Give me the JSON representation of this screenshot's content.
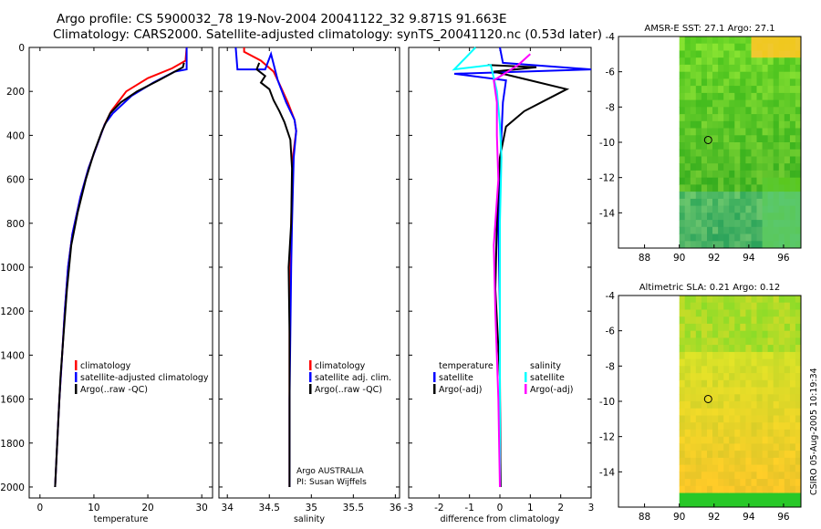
{
  "title": {
    "line1": "Argo profile: CS 5900032_78 19-Nov-2004 20041122_32 9.871S 91.663E",
    "line2": "Climatology: CARS2000. Satellite-adjusted climatology: synTS_20041120.nc (0.53d later)"
  },
  "side_label": "CSIRO 05-Aug-2005 10:19:34",
  "colors": {
    "climatology": "#ff0000",
    "satellite_adjusted": "#0000ff",
    "argo": "#000000",
    "salinity_satellite": "#00ffff",
    "salinity_argo_adj": "#ff00ff"
  },
  "chart_data": [
    {
      "type": "line",
      "id": "temperature",
      "xlabel": "temperature",
      "ylabel": "",
      "xlim": [
        -2,
        32
      ],
      "ylim": [
        2050,
        0
      ],
      "xticks": [
        0,
        10,
        20,
        30
      ],
      "yticks": [
        0,
        200,
        400,
        600,
        800,
        1000,
        1200,
        1400,
        1600,
        1800,
        2000
      ],
      "legend": [
        "climatology",
        "satellite-adjusted climatology",
        "Argo(..raw -QC)"
      ],
      "legend_placement": "lower-right",
      "series": [
        {
          "name": "climatology",
          "color": "#ff0000",
          "x": [
            27.2,
            27.0,
            24.5,
            20,
            16,
            13.2,
            12,
            10.5,
            9,
            7.5,
            6,
            5.2,
            4.6,
            4.1,
            3.6,
            3.2,
            2.8
          ],
          "y": [
            0,
            60,
            95,
            140,
            200,
            290,
            350,
            450,
            550,
            680,
            850,
            1000,
            1200,
            1400,
            1600,
            1800,
            2000
          ]
        },
        {
          "name": "satellite-adjusted climatology",
          "color": "#0000ff",
          "x": [
            27.2,
            27.2,
            25,
            21,
            17,
            13.5,
            12,
            10.5,
            9,
            7.5,
            6,
            5.2,
            4.6,
            4.1,
            3.6,
            3.2,
            2.8
          ],
          "y": [
            0,
            100,
            110,
            160,
            220,
            300,
            350,
            450,
            550,
            680,
            850,
            1000,
            1200,
            1400,
            1600,
            1800,
            2000
          ]
        },
        {
          "name": "Argo(..raw -QC)",
          "color": "#000000",
          "x": [
            26.7,
            26.5,
            25,
            22,
            18,
            15,
            13,
            11.5,
            10,
            8.5,
            7,
            5.8,
            5,
            4.4,
            3.8,
            3.3,
            2.8
          ],
          "y": [
            70,
            90,
            110,
            150,
            200,
            250,
            300,
            380,
            480,
            600,
            750,
            900,
            1100,
            1300,
            1500,
            1750,
            2000
          ]
        }
      ]
    },
    {
      "type": "line",
      "id": "salinity",
      "xlabel": "salinity",
      "ylabel": "",
      "xlim": [
        33.9,
        36.05
      ],
      "ylim": [
        2050,
        0
      ],
      "xticks": [
        34,
        34.5,
        35,
        35.5,
        36
      ],
      "legend": [
        "climatology",
        "satellite adj. clim.",
        "Argo(..raw -QC)"
      ],
      "legend_placement": "lower-right",
      "annotation": [
        "Argo AUSTRALIA",
        "PI: Susan Wijffels"
      ],
      "series": [
        {
          "name": "climatology",
          "color": "#ff0000",
          "x": [
            34.2,
            34.2,
            34.4,
            34.55,
            34.6,
            34.72,
            34.8,
            34.82,
            34.78,
            34.76,
            34.75,
            34.74,
            34.74,
            34.74,
            34.74
          ],
          "y": [
            0,
            20,
            60,
            110,
            150,
            250,
            330,
            380,
            500,
            800,
            1000,
            1300,
            1600,
            1800,
            2000
          ]
        },
        {
          "name": "satellite adj. clim.",
          "color": "#0000ff",
          "x": [
            34.1,
            34.12,
            34.45,
            34.52,
            34.6,
            34.7,
            34.8,
            34.82,
            34.79,
            34.77,
            34.76,
            34.75,
            34.74,
            34.74,
            34.74
          ],
          "y": [
            0,
            100,
            100,
            30,
            150,
            250,
            330,
            380,
            500,
            800,
            1000,
            1300,
            1600,
            1800,
            2000
          ]
        },
        {
          "name": "Argo(..raw -QC)",
          "color": "#000000",
          "x": [
            34.38,
            34.35,
            34.45,
            34.4,
            34.5,
            34.55,
            34.62,
            34.68,
            34.75,
            34.77,
            34.76,
            34.73,
            34.74,
            34.74,
            34.74
          ],
          "y": [
            70,
            100,
            130,
            160,
            190,
            240,
            290,
            340,
            420,
            550,
            800,
            1000,
            1300,
            1700,
            2000
          ]
        }
      ]
    },
    {
      "type": "line",
      "id": "difference",
      "xlabel": "difference from climatology",
      "ylabel": "",
      "xlim": [
        -3,
        3
      ],
      "ylim": [
        2050,
        0
      ],
      "xticks": [
        -3,
        -2,
        -1,
        0,
        1,
        2,
        3
      ],
      "legend_left": [
        "temperature",
        "satellite",
        "Argo(-adj)"
      ],
      "legend_right": [
        "salinity",
        "satellite",
        "Argo(-adj)"
      ],
      "legend_placement": "lower-center",
      "series": [
        {
          "name": "temperature satellite",
          "color": "#0000ff",
          "x": [
            0,
            0.1,
            3.0,
            -1.5,
            0.2,
            0.1,
            0.05,
            0,
            -0.05,
            0,
            0,
            0.02
          ],
          "y": [
            0,
            70,
            100,
            120,
            150,
            250,
            400,
            600,
            800,
            1200,
            1600,
            2000
          ]
        },
        {
          "name": "temperature Argo(-adj)",
          "color": "#000000",
          "x": [
            -0.4,
            1.2,
            -0.2,
            1.0,
            2.2,
            1.5,
            0.8,
            0.2,
            0,
            -0.1,
            -0.15,
            0,
            0.02
          ],
          "y": [
            80,
            90,
            110,
            150,
            190,
            240,
            290,
            360,
            500,
            800,
            1100,
            1500,
            2000
          ]
        },
        {
          "name": "salinity satellite",
          "color": "#00ffff",
          "x": [
            -0.8,
            -1.5,
            -0.3,
            -0.1,
            0,
            0.05,
            0,
            0,
            0
          ],
          "y": [
            0,
            100,
            80,
            200,
            350,
            500,
            800,
            1500,
            2000
          ]
        },
        {
          "name": "salinity Argo(-adj)",
          "color": "#ff00ff",
          "x": [
            1.0,
            0.6,
            -0.2,
            -0.1,
            -0.1,
            -0.05,
            -0.2,
            -0.15,
            -0.05,
            0
          ],
          "y": [
            30,
            80,
            150,
            250,
            400,
            600,
            900,
            1200,
            1600,
            2000
          ]
        }
      ]
    },
    {
      "type": "heatmap",
      "id": "sst-map",
      "title": "AMSR-E SST: 27.1 Argo: 27.1",
      "xlim": [
        86.5,
        97
      ],
      "ylim": [
        -16,
        -4
      ],
      "xticks": [
        88,
        90,
        92,
        94,
        96
      ],
      "yticks": [
        -4,
        -6,
        -8,
        -10,
        -12,
        -14
      ],
      "marker": {
        "lon": 91.66,
        "lat": -9.87
      },
      "data_extent_lon": [
        90,
        97
      ]
    },
    {
      "type": "heatmap",
      "id": "sla-map",
      "title": "Altimetric SLA: 0.21 Argo: 0.12",
      "xlim": [
        86.5,
        97
      ],
      "ylim": [
        -16,
        -4
      ],
      "xticks": [
        88,
        90,
        92,
        94,
        96
      ],
      "yticks": [
        -4,
        -6,
        -8,
        -10,
        -12,
        -14
      ],
      "marker": {
        "lon": 91.66,
        "lat": -9.87
      },
      "data_extent_lon": [
        90,
        97
      ]
    }
  ]
}
